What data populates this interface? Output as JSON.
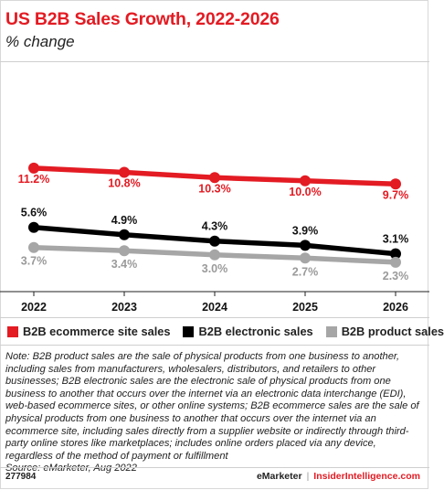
{
  "title": "US B2B Sales Growth, 2022-2026",
  "subtitle": "% change",
  "colors": {
    "ecommerce": "#e31b23",
    "electronic": "#000000",
    "product": "#a6a6a6",
    "accent": "#e31b23"
  },
  "chart_data": {
    "type": "line",
    "title": "US B2B Sales Growth, 2022-2026",
    "subtitle": "% change",
    "categories": [
      "2022",
      "2023",
      "2024",
      "2025",
      "2026"
    ],
    "series": [
      {
        "name": "B2B ecommerce site sales",
        "values": [
          11.2,
          10.8,
          10.3,
          10.0,
          9.7
        ],
        "labels": [
          "11.2%",
          "10.8%",
          "10.3%",
          "10.0%",
          "9.7%"
        ]
      },
      {
        "name": "B2B electronic sales",
        "values": [
          5.6,
          4.9,
          4.3,
          3.9,
          3.1
        ],
        "labels": [
          "5.6%",
          "4.9%",
          "4.3%",
          "3.9%",
          "3.1%"
        ]
      },
      {
        "name": "B2B product sales",
        "values": [
          3.7,
          3.4,
          3.0,
          2.7,
          2.3
        ],
        "labels": [
          "3.7%",
          "3.4%",
          "3.0%",
          "2.7%",
          "2.3%"
        ]
      }
    ],
    "ylim": [
      0,
      12
    ],
    "grid": false,
    "legend": "bottom"
  },
  "legend": [
    {
      "label": "B2B ecommerce site sales"
    },
    {
      "label": "B2B electronic sales"
    },
    {
      "label": "B2B product sales"
    }
  ],
  "note": "Note: B2B product sales are the sale of physical products from one business to another, including sales from manufacturers, wholesalers, distributors, and retailers to other businesses; B2B electronic sales are the electronic sale of physical products from one business to another that occurs over the internet via an electronic data interchange (EDI), web-based ecommerce sites, or other online systems; B2B ecommerce sales are the sale of physical products from one business to another that occurs over the internet via an ecommerce site, including sales directly from a supplier website or indirectly through third-party online stores like marketplaces; includes online orders placed via any device, regardless of the method of payment or fulfillment",
  "source": "Source: eMarketer, Aug 2022",
  "footer": {
    "chart_id": "277984",
    "brand1": "eMarketer",
    "separator": "|",
    "brand2": "InsiderIntelligence.com"
  }
}
